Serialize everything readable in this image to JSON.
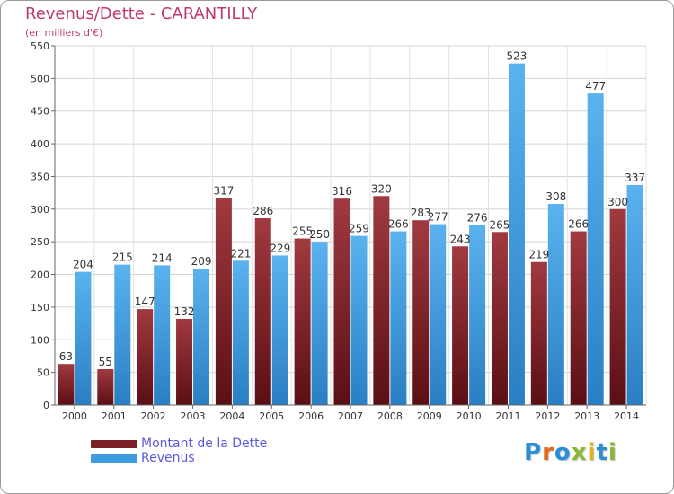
{
  "chart_data": {
    "type": "bar",
    "title": "Revenus/Dette - CARANTILLY",
    "subtitle": "(en milliers d'€)",
    "categories": [
      "2000",
      "2001",
      "2002",
      "2003",
      "2004",
      "2005",
      "2006",
      "2007",
      "2008",
      "2009",
      "2010",
      "2011",
      "2012",
      "2013",
      "2014"
    ],
    "series": [
      {
        "name": "Montant de la Dette",
        "color": "#7a1f24",
        "values": [
          63,
          55,
          147,
          132,
          317,
          286,
          255,
          316,
          320,
          283,
          243,
          265,
          219,
          266,
          300
        ]
      },
      {
        "name": "Revenus",
        "color": "#3d9be0",
        "values": [
          204,
          215,
          214,
          209,
          221,
          229,
          250,
          259,
          266,
          277,
          276,
          523,
          308,
          477,
          337
        ]
      }
    ],
    "yticks": [
      0,
      50,
      100,
      150,
      200,
      250,
      300,
      350,
      400,
      450,
      500,
      550
    ],
    "ylim": [
      0,
      550
    ],
    "grid": true,
    "legend_position": "bottom-left"
  },
  "logo": {
    "letters": [
      "P",
      "r",
      "o",
      "x",
      "i",
      "t",
      "i"
    ],
    "colors": [
      "#2a8fd6",
      "#e06a1a",
      "#2a8fd6",
      "#8ab832",
      "#e0b21a",
      "#2a8fd6",
      "#8ab832"
    ]
  }
}
